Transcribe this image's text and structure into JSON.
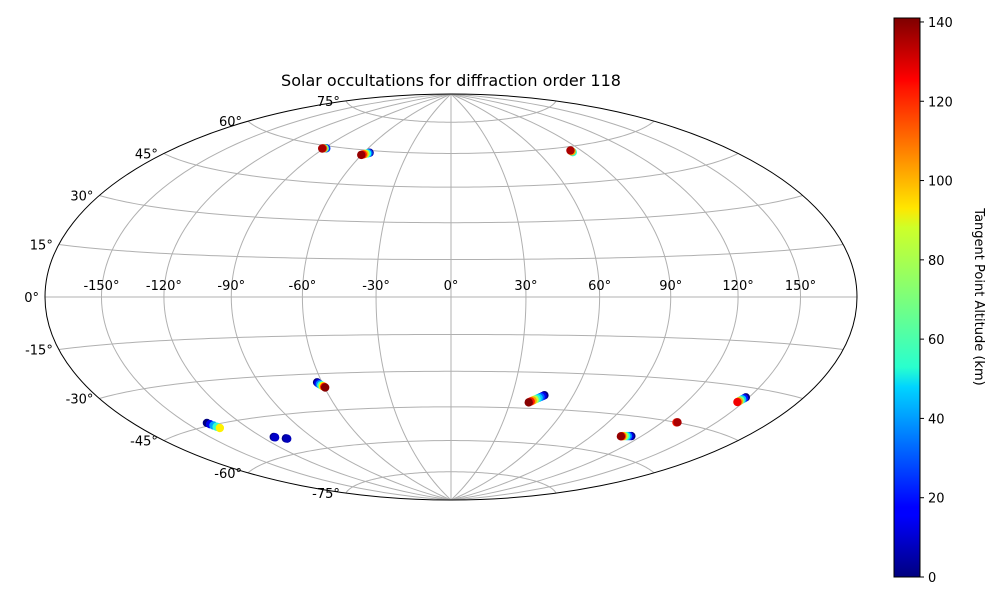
{
  "chart_data": {
    "type": "scatter",
    "projection": "hammer",
    "title": "Solar occultations for diffraction order 118",
    "grid": true,
    "longitude_ticks": [
      "-150°",
      "-120°",
      "-90°",
      "-60°",
      "-30°",
      "0°",
      "30°",
      "60°",
      "90°",
      "120°",
      "150°"
    ],
    "longitude_tick_values": [
      -150,
      -120,
      -90,
      -60,
      -30,
      0,
      30,
      60,
      90,
      120,
      150
    ],
    "latitude_ticks": [
      "-75°",
      "-60°",
      "-45°",
      "-30°",
      "-15°",
      "0°",
      "15°",
      "30°",
      "45°",
      "60°",
      "75°"
    ],
    "latitude_tick_values": [
      -75,
      -60,
      -45,
      -30,
      -15,
      0,
      15,
      30,
      45,
      60,
      75
    ],
    "colorbar": {
      "label": "Tangent Point Altitude (km)",
      "range": [
        0,
        141
      ],
      "ticks": [
        "0",
        "20",
        "40",
        "60",
        "80",
        "100",
        "120",
        "140"
      ],
      "tick_values": [
        0,
        20,
        40,
        60,
        80,
        100,
        120,
        140
      ],
      "colormap": "jet"
    },
    "series": [
      {
        "points": [
          [
            -89,
            59,
            0
          ],
          [
            -88.5,
            59,
            25
          ],
          [
            -89.5,
            58.9,
            70
          ],
          [
            -90.5,
            58.8,
            110
          ],
          [
            -91,
            58.7,
            135
          ]
        ]
      },
      {
        "points": [
          [
            -56,
            59,
            5
          ],
          [
            -56.5,
            58.8,
            30
          ],
          [
            -57.2,
            58.6,
            55
          ],
          [
            -58,
            58.4,
            80
          ],
          [
            -58.7,
            58.2,
            100
          ],
          [
            -59.5,
            58,
            120
          ],
          [
            -60.2,
            57.8,
            138
          ]
        ]
      },
      {
        "points": [
          [
            83,
            57.6,
            60
          ],
          [
            83,
            58,
            100
          ],
          [
            83,
            58.4,
            135
          ]
        ]
      },
      {
        "points": [
          [
            -138.7,
            -44,
            0
          ],
          [
            -138,
            -44.6,
            15
          ],
          [
            -137.2,
            -45.2,
            40
          ],
          [
            -136.5,
            -45.8,
            60
          ],
          [
            -135.8,
            -46.4,
            90
          ]
        ]
      },
      {
        "points": [
          [
            -113,
            -52.8,
            2
          ],
          [
            -112.5,
            -53,
            10
          ]
        ]
      },
      {
        "points": [
          [
            -107,
            -54,
            2
          ],
          [
            -106.5,
            -54.2,
            8
          ]
        ]
      },
      {
        "points": [
          [
            -62.3,
            -33.4,
            0
          ],
          [
            -62,
            -33.8,
            15
          ],
          [
            -61.5,
            -34.2,
            35
          ],
          [
            -61,
            -34.6,
            60
          ],
          [
            -60.5,
            -35,
            90
          ],
          [
            -60,
            -35.3,
            120
          ],
          [
            -59.7,
            -35.6,
            140
          ]
        ]
      },
      {
        "points": [
          [
            45.8,
            -39.3,
            0
          ],
          [
            45.1,
            -39.7,
            15
          ],
          [
            44.3,
            -40.1,
            30
          ],
          [
            43.5,
            -40.5,
            45
          ],
          [
            42.7,
            -40.9,
            60
          ],
          [
            41.9,
            -41.3,
            80
          ],
          [
            41.1,
            -41.7,
            100
          ],
          [
            40.3,
            -42.1,
            120
          ],
          [
            39.5,
            -42.5,
            140
          ]
        ]
      },
      {
        "points": [
          [
            114,
            -52.3,
            0
          ],
          [
            113,
            -52.4,
            15
          ],
          [
            112,
            -52.5,
            35
          ],
          [
            111,
            -52.6,
            55
          ],
          [
            110,
            -52.7,
            75
          ],
          [
            109,
            -52.8,
            95
          ],
          [
            108.5,
            -52.9,
            115
          ],
          [
            108,
            -53,
            138
          ]
        ]
      },
      {
        "points": [
          [
            128,
            -45,
            120
          ],
          [
            128.5,
            -44.9,
            135
          ]
        ]
      },
      {
        "points": [
          [
            148.3,
            -33.2,
            0
          ],
          [
            148,
            -33.6,
            20
          ],
          [
            147.6,
            -34,
            45
          ],
          [
            147.3,
            -34.4,
            70
          ],
          [
            147,
            -34.8,
            100
          ],
          [
            146.7,
            -35.1,
            125
          ]
        ]
      }
    ]
  }
}
